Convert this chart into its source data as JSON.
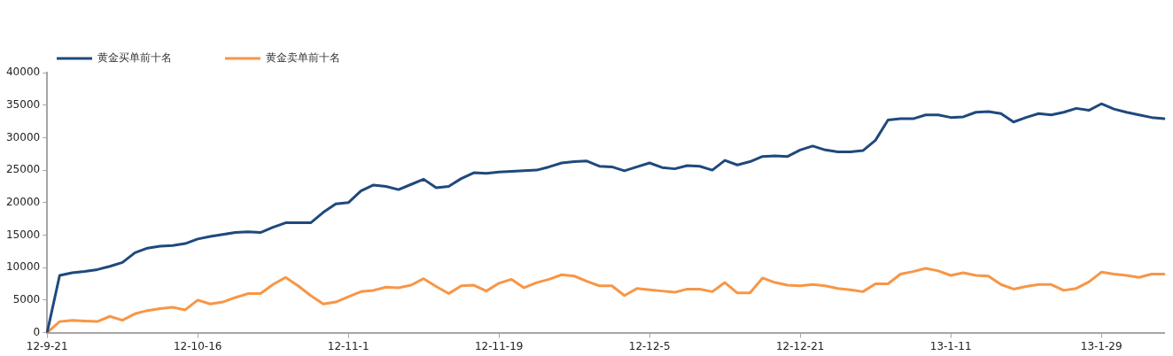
{
  "chart_data": {
    "type": "line",
    "categories": [
      "12-9-21",
      null,
      null,
      null,
      null,
      null,
      null,
      null,
      null,
      null,
      null,
      null,
      "12-10-16",
      null,
      null,
      null,
      null,
      null,
      null,
      null,
      null,
      null,
      null,
      null,
      "12-11-1",
      null,
      null,
      null,
      null,
      null,
      null,
      null,
      null,
      null,
      null,
      null,
      "12-11-19",
      null,
      null,
      null,
      null,
      null,
      null,
      null,
      null,
      null,
      null,
      null,
      "12-12-5",
      null,
      null,
      null,
      null,
      null,
      null,
      null,
      null,
      null,
      null,
      null,
      "12-12-21",
      null,
      null,
      null,
      null,
      null,
      null,
      null,
      null,
      null,
      null,
      null,
      "13-1-11",
      null,
      null,
      null,
      null,
      null,
      null,
      null,
      null,
      null,
      null,
      null,
      "13-1-29",
      null,
      null,
      null,
      null,
      null
    ],
    "series": [
      {
        "name": "黄金买单前十名",
        "color": "#1f497d",
        "values": [
          0,
          8800,
          9200,
          9400,
          9700,
          10200,
          10800,
          12300,
          13000,
          13300,
          13400,
          13700,
          14400,
          14800,
          15100,
          15400,
          15500,
          15400,
          16200,
          16900,
          16900,
          16900,
          18500,
          19800,
          20000,
          21800,
          22700,
          22500,
          22000,
          22800,
          23600,
          22300,
          22500,
          23700,
          24600,
          24500,
          24700,
          24800,
          24900,
          25000,
          25500,
          26100,
          26300,
          26400,
          25600,
          25500,
          24900,
          25500,
          26100,
          25400,
          25200,
          25700,
          25600,
          25000,
          26500,
          25800,
          26300,
          27100,
          27200,
          27100,
          28100,
          28700,
          28100,
          27800,
          27800,
          28000,
          29600,
          32700,
          32900,
          32900,
          33500,
          33500,
          33100,
          33200,
          33900,
          34000,
          33700,
          32400,
          33100,
          33700,
          33500,
          33900,
          34500,
          34200,
          35200,
          34400,
          33900,
          33500,
          33100,
          32900
        ]
      },
      {
        "name": "黄金卖单前十名",
        "color": "#f79646",
        "values": [
          0,
          1700,
          1900,
          1800,
          1700,
          2500,
          1900,
          2900,
          3400,
          3700,
          3900,
          3500,
          5000,
          4400,
          4700,
          5400,
          6000,
          6000,
          7400,
          8500,
          7200,
          5700,
          4400,
          4700,
          5500,
          6300,
          6500,
          7000,
          6900,
          7300,
          8300,
          7100,
          6000,
          7200,
          7300,
          6400,
          7600,
          8200,
          6900,
          7700,
          8200,
          8900,
          8700,
          7900,
          7200,
          7200,
          5700,
          6800,
          6600,
          6400,
          6200,
          6700,
          6700,
          6300,
          7700,
          6100,
          6100,
          8400,
          7700,
          7300,
          7200,
          7400,
          7200,
          6800,
          6600,
          6300,
          7500,
          7500,
          9000,
          9400,
          9900,
          9500,
          8800,
          9200,
          8800,
          8700,
          7400,
          6700,
          7100,
          7400,
          7400,
          6500,
          6800,
          7800,
          9300,
          9000,
          8800,
          8500,
          9000,
          9000
        ]
      }
    ],
    "ylim": [
      0,
      40000
    ],
    "yticks": [
      0,
      5000,
      10000,
      15000,
      20000,
      25000,
      30000,
      35000,
      40000
    ],
    "legend": "top left",
    "grid": false,
    "marker": "none",
    "line_style": "solid"
  }
}
